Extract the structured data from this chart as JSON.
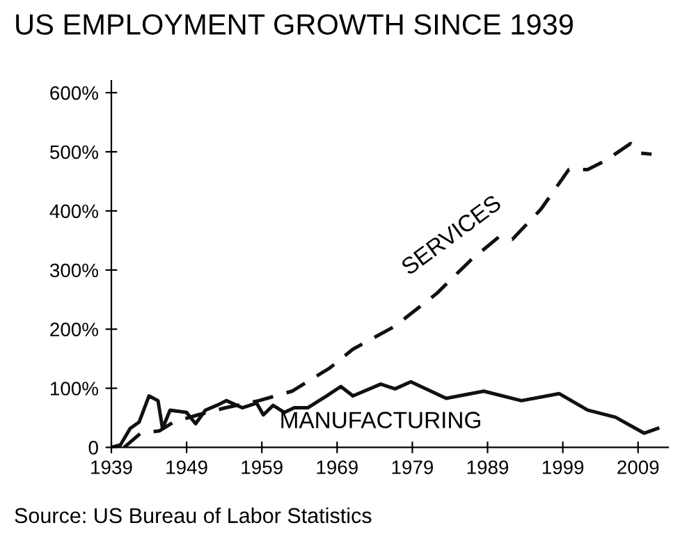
{
  "chart_data": {
    "type": "line",
    "title": "US EMPLOYMENT GROWTH SINCE 1939",
    "annotations": [
      "Source: US Bureau of Labor Statistics"
    ],
    "xlim": [
      1939,
      2013
    ],
    "xticks": [
      1939,
      1949,
      1959,
      1969,
      1979,
      1989,
      1999,
      2009
    ],
    "ylim": [
      0,
      620
    ],
    "yticks": [
      {
        "value": 0,
        "label": "0"
      },
      {
        "value": 100,
        "label": "100%"
      },
      {
        "value": 200,
        "label": "200%"
      },
      {
        "value": 300,
        "label": "300%"
      },
      {
        "value": 400,
        "label": "400%"
      },
      {
        "value": 500,
        "label": "500%"
      },
      {
        "value": 600,
        "label": "600%"
      }
    ],
    "grid": false,
    "legend": false,
    "series": [
      {
        "name": "SERVICES",
        "color": "#111111",
        "line_style": "dashed",
        "x": [
          1940.7,
          1942.9,
          1945.4,
          1947.3,
          1950.5,
          1954.2,
          1958.6,
          1963,
          1968,
          1971.1,
          1976.7,
          1982.3,
          1986.7,
          1990.5,
          1992.3,
          1996.1,
          1999.8,
          2002.3,
          2004.8,
          2008,
          2009.2,
          2010.8
        ],
        "values": [
          0,
          24,
          28,
          43,
          55,
          67,
          79,
          95,
          134,
          166,
          205,
          261,
          316,
          356,
          352,
          403,
          470,
          470,
          486,
          514,
          498,
          496
        ]
      },
      {
        "name": "MANUFACTURING",
        "color": "#111111",
        "line_style": "solid",
        "x": [
          1939,
          1940.2,
          1941.5,
          1942.7,
          1944,
          1945.2,
          1945.8,
          1946.8,
          1949,
          1950.2,
          1951.5,
          1953,
          1954.3,
          1956.4,
          1958.3,
          1959.2,
          1960.5,
          1962,
          1963.3,
          1965.1,
          1967.6,
          1969.5,
          1971.1,
          1974.8,
          1976.7,
          1978.8,
          1983.5,
          1988.5,
          1993.5,
          1998.5,
          2002.3,
          2006,
          2009.8,
          2011.6
        ],
        "values": [
          0,
          4,
          32,
          43,
          87,
          79,
          32,
          63,
          59,
          40,
          63,
          71,
          79,
          67,
          75,
          55,
          71,
          59,
          67,
          67,
          87,
          103,
          87,
          107,
          99,
          111,
          83,
          95,
          79,
          91,
          63,
          51,
          24,
          32
        ]
      }
    ]
  }
}
